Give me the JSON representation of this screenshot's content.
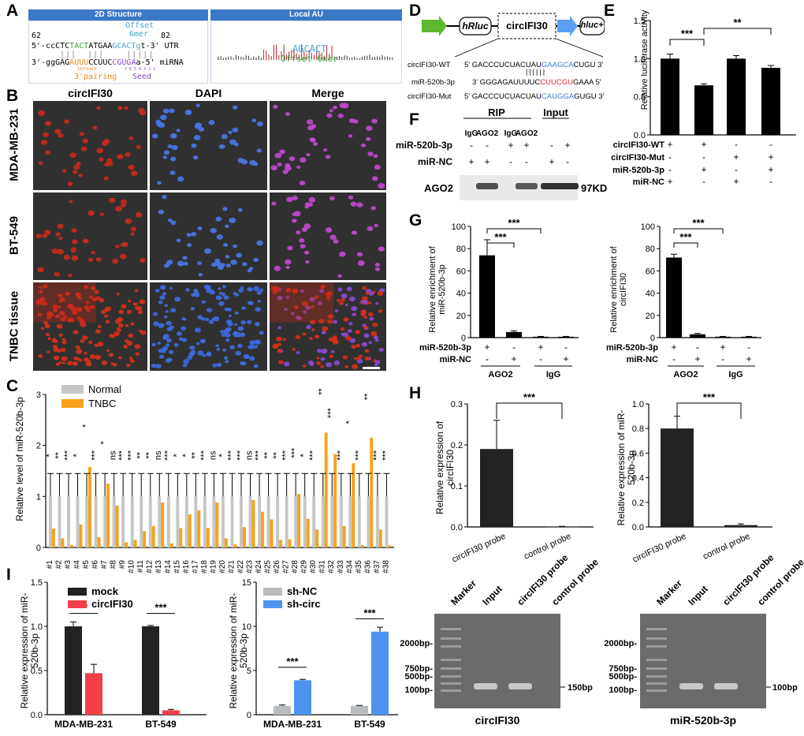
{
  "panels": {
    "A": "A",
    "B": "B",
    "C": "C",
    "D": "D",
    "E": "E",
    "F": "F",
    "G": "G",
    "H": "H",
    "I": "I"
  },
  "A": {
    "left_title": "2D Structure",
    "right_title": "Local AU",
    "offset_label": "Offset",
    "offset_6mer": "6mer",
    "pos_left": "62",
    "pos_right": "82",
    "utr_prefix": "5'-ccCTC",
    "utr_mid1": "TACT",
    "utr_mid2": "ATGAA",
    "utr_site": "GCACT",
    "utr_tail": "g",
    "utr_end": "t-3' UTR",
    "mir_prefix": "3'-ggGAG",
    "mir_pair": "AUUU",
    "mir_mid": "CCUUC",
    "mir_seed": "CGUGA",
    "mir_tail": "a-5' miRNA",
    "pairing_label": "3'pairing",
    "seed_label": "Seed",
    "au_seq": "AGCACT",
    "au_label": "Offset 6mer",
    "nums_left": "16151413",
    "nums_seed": "7 6 5 4 3 2 1"
  },
  "B": {
    "cols": [
      "circIFI30",
      "DAPI",
      "Merge"
    ],
    "rows": [
      "MDA-MB-231",
      "BT-549",
      "TNBC tissue"
    ]
  },
  "C": {
    "ylabel": "Relative level of miR-520b-3p",
    "legend": [
      "Normal",
      "TNBC"
    ],
    "colors": {
      "normal": "#c6c6c6",
      "tnbc": "#f7a21a"
    },
    "chart_data": {
      "type": "bar",
      "categories": [
        "#1",
        "#2",
        "#3",
        "#4",
        "#5",
        "#6",
        "#7",
        "#8",
        "#9",
        "#10",
        "#11",
        "#12",
        "#13",
        "#14",
        "#15",
        "#16",
        "#17",
        "#18",
        "#19",
        "#20",
        "#21",
        "#22",
        "#23",
        "#24",
        "#25",
        "#26",
        "#27",
        "#28",
        "#29",
        "#30",
        "#31",
        "#32",
        "#33",
        "#34",
        "#35",
        "#36",
        "#37",
        "#38"
      ],
      "series": [
        {
          "name": "Normal",
          "values": [
            1,
            1,
            1,
            1,
            1,
            1,
            1,
            1,
            1,
            1,
            1,
            1,
            1,
            1,
            1,
            1,
            1,
            1,
            1,
            1,
            1,
            1,
            1,
            1,
            1,
            1,
            1,
            1,
            1,
            1,
            1,
            1,
            1,
            1,
            1,
            1,
            1,
            1
          ]
        },
        {
          "name": "TNBC",
          "values": [
            0.37,
            0.18,
            0.05,
            0.45,
            1.58,
            0.2,
            1.25,
            0.82,
            0.1,
            0.15,
            0.32,
            0.42,
            0.88,
            0.08,
            0.38,
            0.65,
            0.73,
            0.38,
            0.88,
            0.18,
            0.06,
            0.4,
            0.93,
            0.7,
            0.55,
            0.15,
            0.16,
            1.05,
            0.56,
            0.35,
            2.25,
            1.83,
            0.42,
            1.65,
            0.05,
            2.15,
            0.35,
            0.04
          ]
        }
      ],
      "significance": [
        "*",
        "**",
        "***",
        "*",
        "*",
        "***",
        "*",
        "ns",
        "***",
        "***",
        "**",
        "**",
        "ns",
        "***",
        "*",
        "*",
        "**",
        "***",
        "ns",
        "*",
        "***",
        "***",
        "ns",
        "***",
        "**",
        "**",
        "***",
        "***",
        "*",
        "***",
        "**",
        "***",
        "***",
        "*",
        "***",
        "**",
        "***",
        "***"
      ],
      "ylim": [
        0,
        3
      ],
      "yticks": [
        "0",
        "1",
        "2",
        "3"
      ]
    }
  },
  "D": {
    "hrluc": "hRluc",
    "circ": "circIFI30",
    "hluc": "hluc+",
    "wt_name": "circIFI30-WT",
    "wt_seq_a": "5' GACCCUCUACUAU",
    "wt_seq_b": "GAAGCA",
    "wt_seq_c": "CUGU 3'",
    "mir_name": "miR-520b-3p",
    "mir_seq_a": "3' GGGAGAUUUUC",
    "mir_seq_b": "CUUCGU",
    "mir_seq_c": "GAAA 5'",
    "mut_name": "circIFI30-Mut",
    "mut_seq_a": "5' GACCCUCUACUAU",
    "mut_seq_b": "CAUGGA",
    "mut_seq_c": "GUGU 3'"
  },
  "E": {
    "ylabel": "Relative luciferase activity",
    "row_labels": [
      "circIFI30-WT",
      "circIFI30-Mut",
      "miR-520b-3p",
      "miR-NC"
    ],
    "row_signs": [
      [
        "+",
        "+",
        "-",
        "-"
      ],
      [
        "-",
        "-",
        "+",
        "+"
      ],
      [
        "-",
        "+",
        "-",
        "+"
      ],
      [
        "+",
        "-",
        "+",
        "-"
      ]
    ],
    "sig": [
      "***",
      "**"
    ],
    "chart_data": {
      "type": "bar",
      "values": [
        1.0,
        0.65,
        1.0,
        0.88
      ],
      "errors": [
        0.06,
        0.02,
        0.04,
        0.03
      ],
      "ylim": [
        0,
        1.5
      ],
      "yticks": [
        "0.0",
        "0.5",
        "1.0",
        "1.5"
      ]
    }
  },
  "F": {
    "rip": "RIP",
    "input": "Input",
    "lanes": [
      "IgG",
      "AGO2",
      "IgG",
      "AGO2"
    ],
    "row1_label": "miR-520b-3p",
    "row1": [
      "-",
      "-",
      "+",
      "+",
      "-",
      "+"
    ],
    "row2_label": "miR-NC",
    "row2": [
      "+",
      "+",
      "-",
      "-",
      "+",
      "-"
    ],
    "blot_label": "AGO2",
    "kd": "97KD"
  },
  "G": {
    "left": {
      "ylabel": "Relative enrichment of miR-520b-3p",
      "chart_data": {
        "type": "bar",
        "values": [
          74,
          5,
          0.8,
          0.8
        ],
        "errors": [
          14,
          1,
          0.3,
          0.3
        ],
        "ylim": [
          0,
          100
        ],
        "yticks": [
          "0",
          "20",
          "40",
          "60",
          "80",
          "100"
        ]
      }
    },
    "right": {
      "ylabel": "Relative enrichment of circIFI30",
      "chart_data": {
        "type": "bar",
        "values": [
          72,
          3,
          0.8,
          0.8
        ],
        "errors": [
          3,
          0.8,
          0.3,
          0.3
        ],
        "ylim": [
          0,
          100
        ],
        "yticks": [
          "0",
          "20",
          "40",
          "60",
          "80",
          "100"
        ]
      }
    },
    "row1_label": "miR-520b-3p",
    "row1": [
      "+",
      "-",
      "+",
      "-"
    ],
    "row2_label": "miR-NC",
    "row2": [
      "-",
      "+",
      "-",
      "+"
    ],
    "groups": [
      "AGO2",
      "IgG"
    ],
    "sig": "***"
  },
  "H": {
    "left": {
      "ylabel": "Relative expression of circIFI30",
      "chart_data": {
        "type": "bar",
        "categories": [
          "circIFI30 probe",
          "control  probe"
        ],
        "values": [
          0.19,
          0.001
        ],
        "errors": [
          0.07,
          0.0005
        ],
        "ylim": [
          0,
          0.3
        ],
        "yticks": [
          "0.0",
          "0.1",
          "0.2",
          "0.3"
        ]
      }
    },
    "right": {
      "ylabel": "Relative expression of miR-520b-3p",
      "chart_data": {
        "type": "bar",
        "categories": [
          "circIFI30 probe",
          "control probe"
        ],
        "values": [
          0.8,
          0.015
        ],
        "errors": [
          0.1,
          0.01
        ],
        "ylim": [
          0,
          1.0
        ],
        "yticks": [
          "0.0",
          "0.2",
          "0.4",
          "0.6",
          "0.8",
          "1.0"
        ]
      }
    },
    "sig": "***",
    "gel_left": {
      "lanes": [
        "Marker",
        "Input",
        "circIFI30 probe",
        "control probe"
      ],
      "markers": [
        "2000bp-",
        "750bp-",
        "500bp-",
        "100bp-"
      ],
      "band": "150bp",
      "caption": "circIFI30"
    },
    "gel_right": {
      "lanes": [
        "Marker",
        "Input",
        "circIFI30 probe",
        "control probe"
      ],
      "markers": [
        "2000bp-",
        "750bp-",
        "500bp-",
        "100bp-"
      ],
      "band": "100bp",
      "caption": "miR-520b-3p"
    }
  },
  "I": {
    "left": {
      "ylabel": "Relative expression of miR-520b-3p",
      "legend": [
        "mock",
        "circIFI30"
      ],
      "colors": [
        "#222222",
        "#f2404a"
      ],
      "chart_data": {
        "type": "bar",
        "categories": [
          "MDA-MB-231",
          "BT-549"
        ],
        "series": [
          {
            "name": "mock",
            "values": [
              1.0,
              1.0
            ]
          },
          {
            "name": "circIFI30",
            "values": [
              0.47,
              0.05
            ]
          }
        ],
        "errors": [
          [
            0.05,
            0.01
          ],
          [
            0.1,
            0.01
          ]
        ],
        "ylim": [
          0,
          1.5
        ],
        "yticks": [
          "0.0",
          "0.5",
          "1.0",
          "1.5"
        ]
      },
      "sig": [
        "**",
        "***"
      ]
    },
    "right": {
      "ylabel": "Relative expression of miR-520b-3p",
      "legend": [
        "sh-NC",
        "sh-circ"
      ],
      "colors": [
        "#b8bcc0",
        "#4c94f0"
      ],
      "chart_data": {
        "type": "bar",
        "categories": [
          "MDA-MB-231",
          "BT-549"
        ],
        "series": [
          {
            "name": "sh-NC",
            "values": [
              1.0,
              1.0
            ]
          },
          {
            "name": "sh-circ",
            "values": [
              3.9,
              9.4
            ]
          }
        ],
        "errors": [
          [
            0.1,
            0.05
          ],
          [
            0.1,
            0.5
          ]
        ],
        "ylim": [
          0,
          15
        ],
        "yticks": [
          "0",
          "5",
          "10",
          "15"
        ]
      },
      "sig": [
        "***",
        "***"
      ]
    }
  }
}
